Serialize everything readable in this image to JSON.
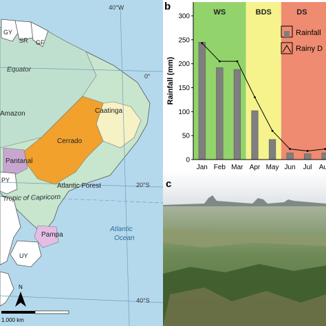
{
  "map": {
    "longitude_label": "40°W",
    "equator_label": "Equator",
    "lat_0": "0°",
    "lat_20": "20°S",
    "lat_40": "40°S",
    "tropic_label": "Tropic of Capricorn",
    "country_gy": "GY",
    "country_sr": "SR",
    "country_gf": "GF",
    "country_py": "PY",
    "country_uy": "UY",
    "biome_amazon": "Amazon",
    "biome_caatinga": "Caatinga",
    "biome_cerrado": "Cerrado",
    "biome_pantanal": "Pantanal",
    "biome_atlantic_forest": "Atlantic Forest",
    "biome_pampa": "Pampa",
    "ocean_line1": "Atlantic",
    "ocean_line2": "Ocean",
    "north_label": "N",
    "scale_label": "1.000 km",
    "colors": {
      "ocean": "#b5d9ec",
      "amazon": "#bfe0cf",
      "cerrado": "#f2a12c",
      "caatinga": "#f7f1c6",
      "pantanal": "#c7a7d0",
      "pampa": "#e3bde4",
      "country": "#ffffff"
    }
  },
  "panel_b_label": "b",
  "panel_c_label": "c",
  "chart_data": {
    "type": "bar",
    "categories": [
      "Jan",
      "Feb",
      "Mar",
      "Apr",
      "May",
      "Jun",
      "Jul",
      "Aug"
    ],
    "series": [
      {
        "name": "Rainfall",
        "type": "bar",
        "values": [
          245,
          192,
          188,
          102,
          42,
          14,
          12,
          14
        ]
      },
      {
        "name": "Rainy D",
        "type": "line",
        "values": [
          243,
          205,
          205,
          130,
          60,
          22,
          18,
          22
        ]
      }
    ],
    "ylabel": "Rainfall (mm)",
    "yticks": [
      "0",
      "50",
      "100",
      "150",
      "200",
      "250",
      "300"
    ],
    "ylim": [
      0,
      300
    ],
    "seasons": [
      {
        "label": "WS",
        "start": 0,
        "end": 3,
        "color": "#93d36b"
      },
      {
        "label": "BDS",
        "start": 3,
        "end": 5,
        "color": "#f6f38d"
      },
      {
        "label": "DS",
        "start": 5,
        "end": 8,
        "color": "#ef8b70"
      }
    ],
    "legend": {
      "position": "top-right",
      "items": [
        "Rainfall",
        "Rainy D"
      ]
    },
    "colors": {
      "bar": "#7f7f7f",
      "line": "#000000"
    }
  }
}
